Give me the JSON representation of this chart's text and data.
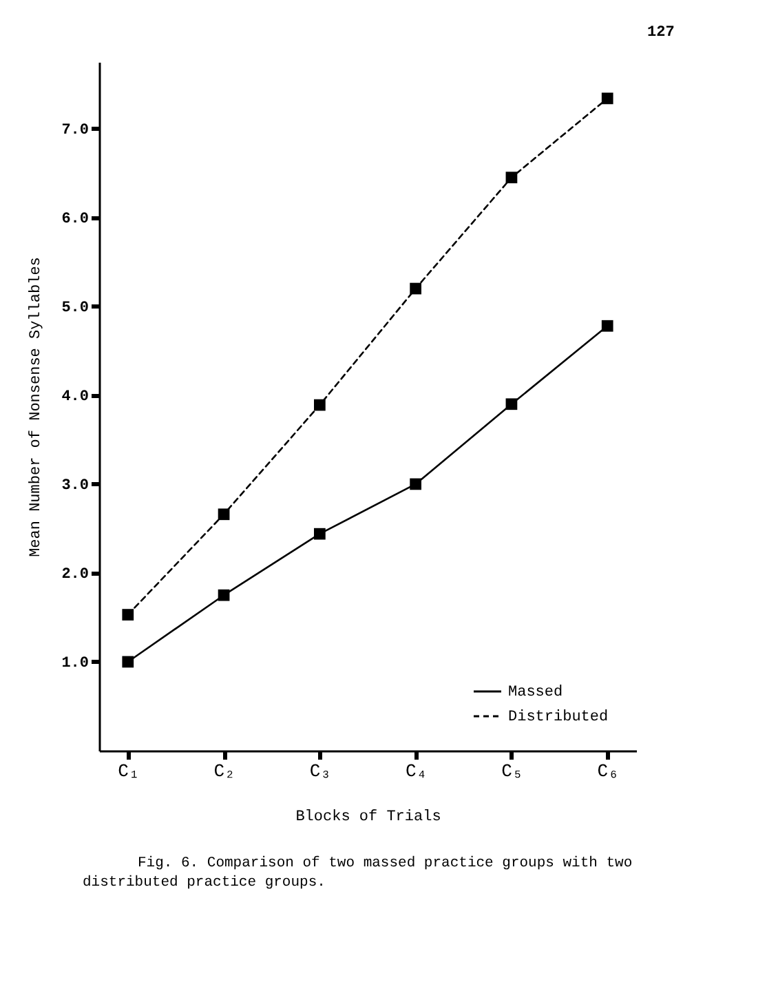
{
  "chart_data": {
    "type": "line",
    "xlabel": "Blocks of Trials",
    "ylabel": "Mean Number of Nonsense Syllables",
    "categories": [
      "C₁",
      "C₂",
      "C₃",
      "C₄",
      "C₅",
      "C₆"
    ],
    "series": [
      {
        "name": "Massed",
        "color": "#000000",
        "line_style": "solid",
        "values": [
          1.0,
          1.75,
          2.44,
          3.0,
          3.9,
          4.78
        ]
      },
      {
        "name": "Distributed",
        "color": "#000000",
        "line_style": "dashed",
        "values": [
          1.53,
          2.66,
          3.89,
          5.2,
          6.45,
          7.34
        ]
      }
    ],
    "ylim": [
      0,
      7.75
    ],
    "yticks": [
      {
        "value": 1,
        "label": "1.0"
      },
      {
        "value": 2,
        "label": "2.0"
      },
      {
        "value": 3,
        "label": "3.0"
      },
      {
        "value": 4,
        "label": "4.0"
      },
      {
        "value": 5,
        "label": "5.0"
      },
      {
        "value": 6,
        "label": "6.0"
      },
      {
        "value": 7,
        "label": "7.0"
      }
    ],
    "grid": false,
    "legend": "bottom right",
    "marker": "square",
    "annotations": [
      "127",
      "Fig. 6.  Comparison of two massed practice groups with two distributed practice groups."
    ]
  }
}
